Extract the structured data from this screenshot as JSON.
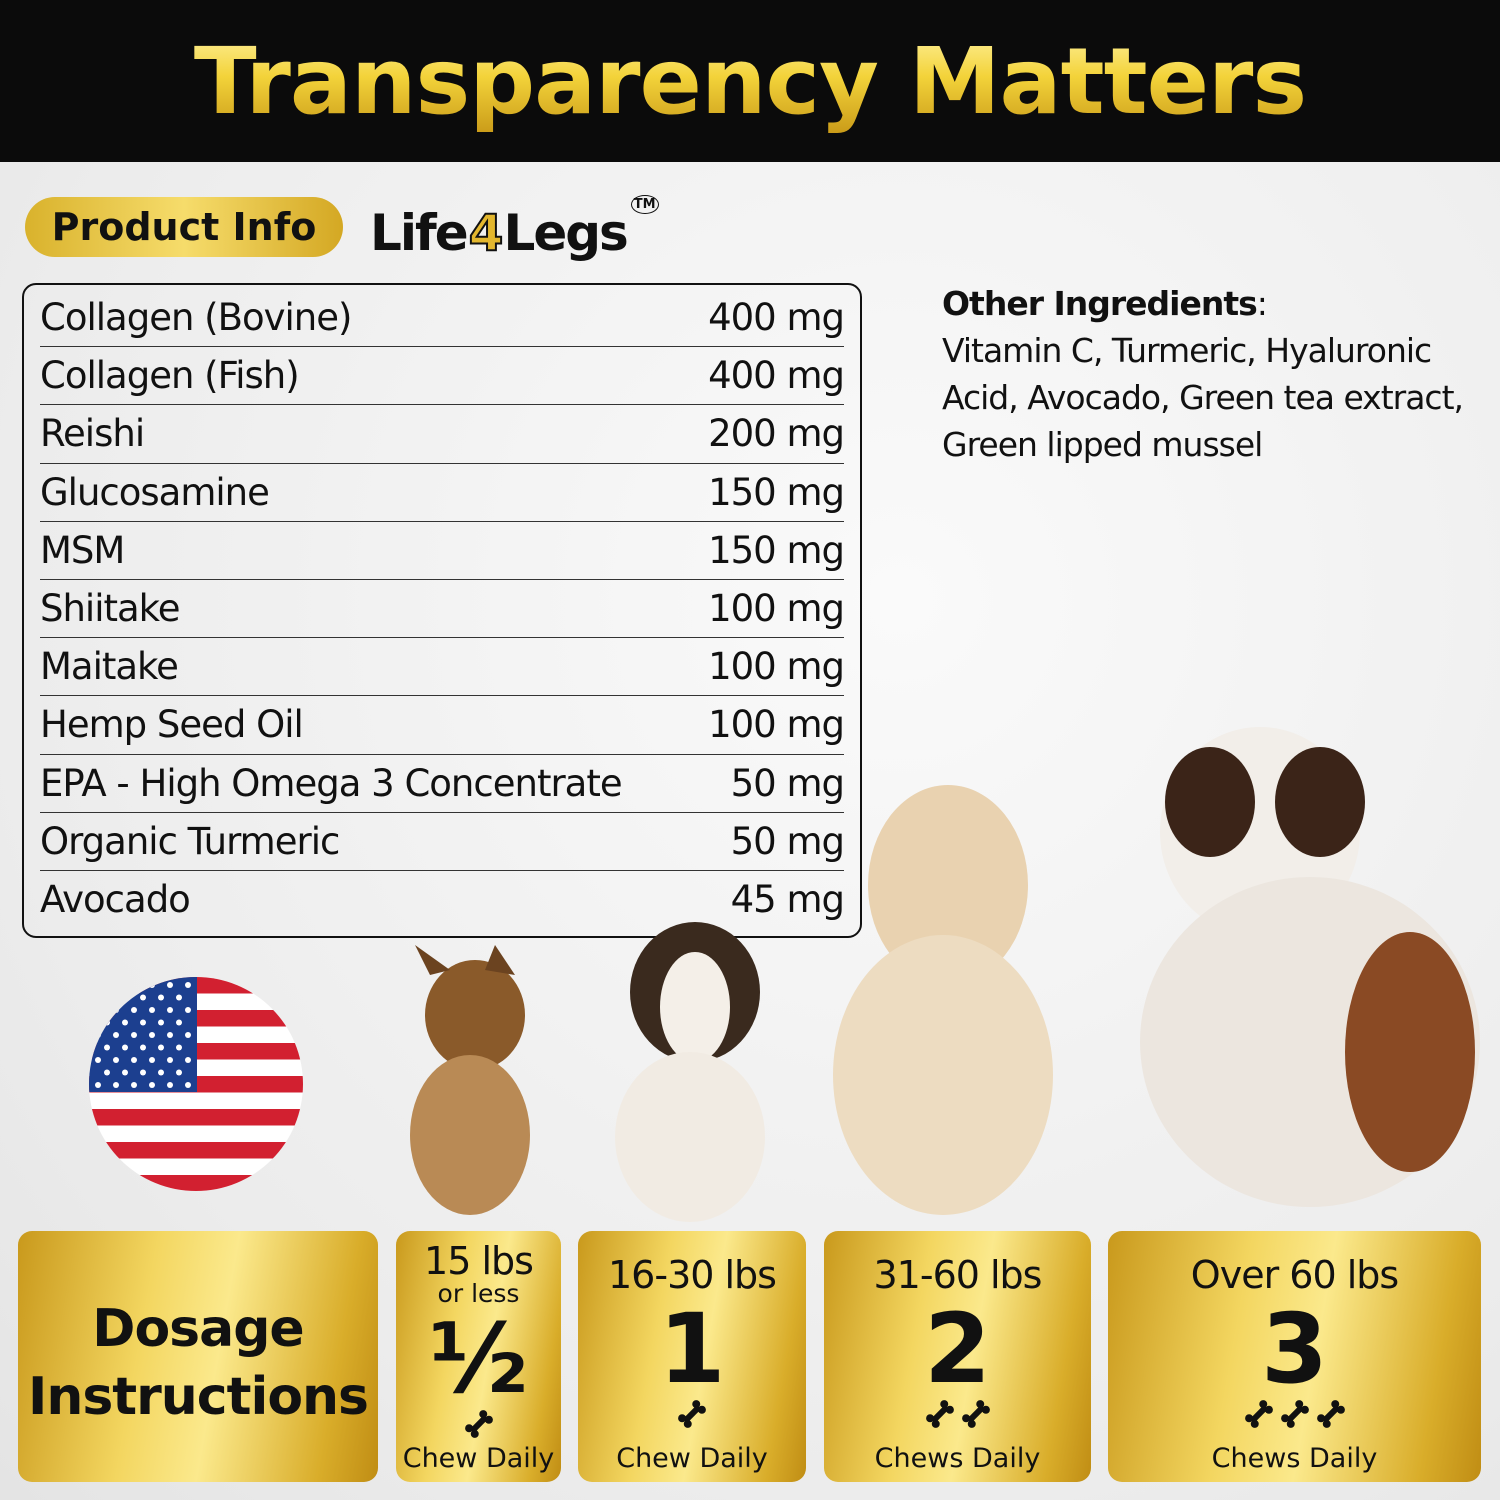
{
  "header": {
    "title": "Transparency Matters"
  },
  "badge": {
    "label": "Product Info"
  },
  "logo": {
    "text_before": "Life",
    "text_number": "4",
    "text_after": "Legs",
    "trademark": "TM"
  },
  "ingredients": [
    {
      "name": "Collagen (Bovine)",
      "amount": "400 mg"
    },
    {
      "name": "Collagen (Fish)",
      "amount": "400 mg"
    },
    {
      "name": "Reishi",
      "amount": "200 mg"
    },
    {
      "name": "Glucosamine",
      "amount": "150 mg"
    },
    {
      "name": "MSM",
      "amount": "150 mg"
    },
    {
      "name": "Shiitake",
      "amount": "100 mg"
    },
    {
      "name": "Maitake",
      "amount": "100 mg"
    },
    {
      "name": "Hemp Seed Oil",
      "amount": "100 mg"
    },
    {
      "name": "EPA - High Omega 3 Concentrate",
      "amount": "50 mg"
    },
    {
      "name": "Organic Turmeric",
      "amount": "50 mg"
    },
    {
      "name": "Avocado",
      "amount": "45 mg"
    }
  ],
  "other_ingredients": {
    "heading": "Other Ingredients",
    "colon": ":",
    "text": "Vitamin C, Turmeric, Hyaluronic Acid, Avocado, Green tea extract, Green lipped mussel"
  },
  "flag": {
    "icon": "us-flag-icon"
  },
  "dosage": {
    "title_line1": "Dosage",
    "title_line2": "Instructions",
    "tiers": [
      {
        "weight": "15 lbs",
        "weight_sub": "or less",
        "count": "½",
        "bones": 1,
        "label": "Chew Daily"
      },
      {
        "weight": "16-30 lbs",
        "count": "1",
        "bones": 1,
        "label": "Chew Daily"
      },
      {
        "weight": "31-60 lbs",
        "count": "2",
        "bones": 2,
        "label": "Chews Daily"
      },
      {
        "weight": "Over 60 lbs",
        "count": "3",
        "bones": 3,
        "label": "Chews Daily"
      }
    ]
  },
  "colors": {
    "gold": "#f3d33a",
    "header_bg": "#0b0b0b"
  }
}
